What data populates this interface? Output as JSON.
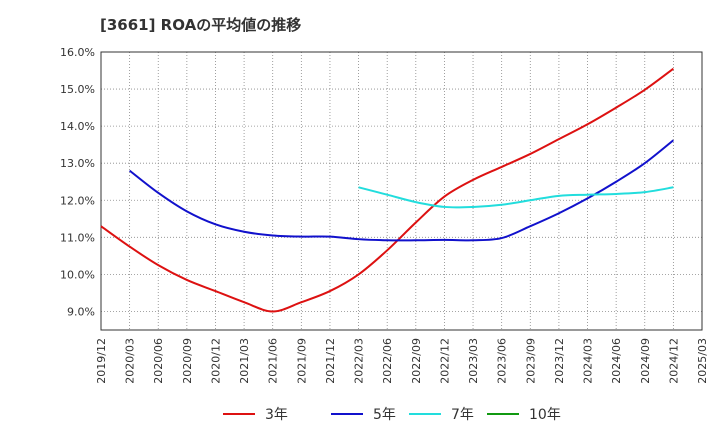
{
  "chart_data": {
    "type": "line",
    "title": "[3661]  ROAの平均値の推移",
    "xlabel": "",
    "ylabel": "",
    "ylim": [
      8.5,
      16.0
    ],
    "yticks": [
      9.0,
      10.0,
      11.0,
      12.0,
      13.0,
      14.0,
      15.0,
      16.0
    ],
    "ytick_labels": [
      "9.0%",
      "10.0%",
      "11.0%",
      "12.0%",
      "13.0%",
      "14.0%",
      "15.0%",
      "16.0%"
    ],
    "x_categories": [
      "2019/12",
      "2020/03",
      "2020/06",
      "2020/09",
      "2020/12",
      "2021/03",
      "2021/06",
      "2021/09",
      "2021/12",
      "2022/03",
      "2022/06",
      "2022/09",
      "2022/12",
      "2023/03",
      "2023/06",
      "2023/09",
      "2023/12",
      "2024/03",
      "2024/06",
      "2024/09",
      "2024/12",
      "2025/03"
    ],
    "grid": true,
    "legend_position": "bottom",
    "series": [
      {
        "name": "3年",
        "color": "#dd1111",
        "values": [
          11.3,
          10.75,
          10.25,
          9.85,
          9.55,
          9.25,
          9.0,
          9.25,
          9.55,
          10.0,
          10.65,
          11.4,
          12.1,
          12.55,
          12.9,
          13.25,
          13.65,
          14.05,
          14.5,
          14.98,
          15.55,
          null
        ]
      },
      {
        "name": "5年",
        "color": "#1111cc",
        "values": [
          null,
          12.8,
          12.2,
          11.7,
          11.35,
          11.15,
          11.05,
          11.02,
          11.02,
          10.95,
          10.92,
          10.92,
          10.93,
          10.92,
          10.98,
          11.3,
          11.65,
          12.05,
          12.5,
          13.0,
          13.62,
          null
        ]
      },
      {
        "name": "7年",
        "color": "#22dddd",
        "values": [
          null,
          null,
          null,
          null,
          null,
          null,
          null,
          null,
          null,
          12.35,
          12.15,
          11.95,
          11.82,
          11.82,
          11.88,
          12.0,
          12.12,
          12.15,
          12.17,
          12.22,
          12.35,
          null
        ]
      },
      {
        "name": "10年",
        "color": "#119911",
        "values": [
          null,
          null,
          null,
          null,
          null,
          null,
          null,
          null,
          null,
          null,
          null,
          null,
          null,
          null,
          null,
          null,
          null,
          null,
          null,
          null,
          null,
          null
        ]
      }
    ]
  }
}
